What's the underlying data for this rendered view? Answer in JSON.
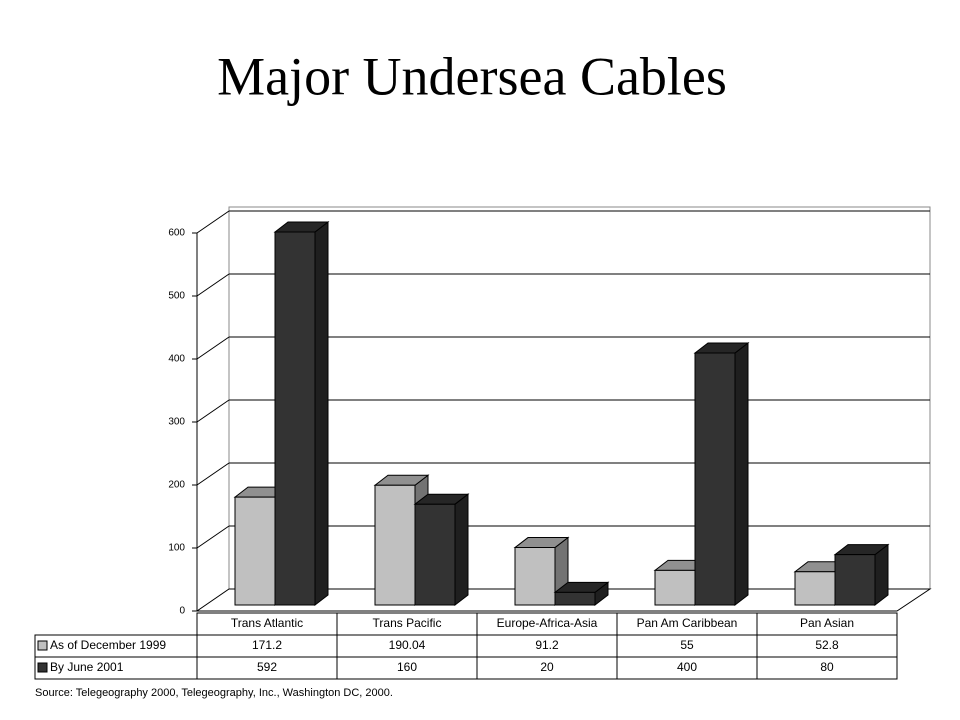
{
  "chart_data": {
    "type": "bar3d",
    "title": "Major Undersea Cables",
    "categories": [
      "Trans Atlantic",
      "Trans Pacific",
      "Europe-Africa-Asia",
      "Pan Am Caribbean",
      "Pan Asian"
    ],
    "series": [
      {
        "name": "As of December 1999",
        "color": "#c0c0c0",
        "values": [
          171.2,
          190.04,
          91.2,
          55,
          52.8
        ]
      },
      {
        "name": "By June 2001",
        "color": "#333333",
        "values": [
          592,
          160,
          20,
          400,
          80
        ]
      }
    ],
    "ylim": [
      0,
      600
    ],
    "yticks": [
      0,
      100,
      200,
      300,
      400,
      500,
      600
    ],
    "grid": true,
    "source": "Source: Telegeography 2000, Telegeography, Inc., Washington DC, 2000."
  }
}
